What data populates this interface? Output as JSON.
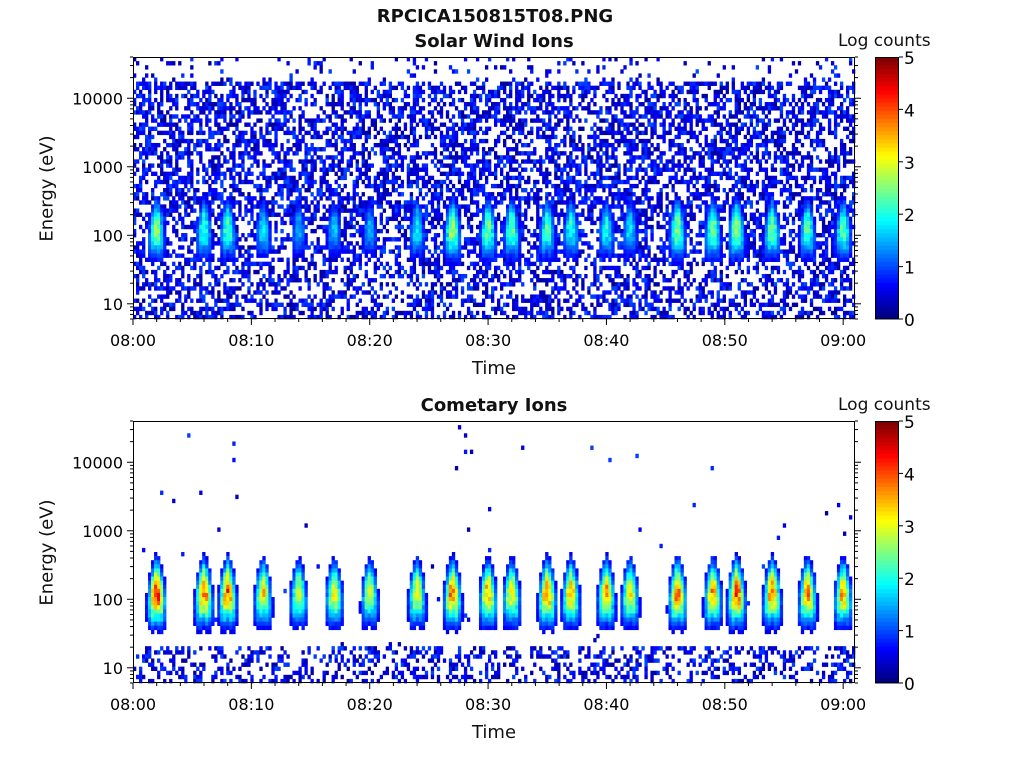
{
  "figure_title": "RPCICA150815T08.PNG",
  "panels": [
    {
      "title": "Solar Wind Ions",
      "ylabel": "Energy (eV)",
      "xlabel": "Time",
      "colorbar_label": "Log counts"
    },
    {
      "title": "Cometary Ions",
      "ylabel": "Energy (eV)",
      "xlabel": "Time",
      "colorbar_label": "Log counts"
    }
  ],
  "colors": {
    "colormap": "jet",
    "background": "#ffffff"
  },
  "chart_data": [
    {
      "type": "heatmap",
      "title": "Solar Wind Ions",
      "xlabel": "Time",
      "ylabel": "Energy (eV)",
      "x_ticks": [
        "08:00",
        "08:10",
        "08:20",
        "08:30",
        "08:40",
        "08:50",
        "09:00"
      ],
      "x_range": [
        "08:00",
        "09:01"
      ],
      "y_scale": "log",
      "y_ticks": [
        10,
        100,
        1000,
        10000
      ],
      "y_range": [
        6,
        40000
      ],
      "colorbar": {
        "label": "Log counts",
        "range": [
          0,
          5
        ],
        "ticks": [
          0,
          1,
          2,
          3,
          4,
          5
        ],
        "colormap": "jet"
      },
      "description_bands_center_eV": 60,
      "peak_times_min": [
        2,
        6,
        8,
        11,
        14,
        17,
        20,
        24,
        27,
        30,
        32,
        35,
        37,
        40,
        42,
        46,
        49,
        51,
        54,
        57,
        60
      ],
      "peak_log_counts": [
        2.6,
        2.2,
        2.3,
        1.8,
        1.5,
        1.6,
        1.5,
        1.9,
        2.8,
        2.5,
        2.4,
        2.3,
        2.1,
        2.0,
        1.8,
        2.6,
        2.5,
        2.7,
        2.5,
        2.3,
        2.4
      ]
    },
    {
      "type": "heatmap",
      "title": "Cometary Ions",
      "xlabel": "Time",
      "ylabel": "Energy (eV)",
      "x_ticks": [
        "08:00",
        "08:10",
        "08:20",
        "08:30",
        "08:40",
        "08:50",
        "09:00"
      ],
      "x_range": [
        "08:00",
        "09:01"
      ],
      "y_scale": "log",
      "y_ticks": [
        10,
        100,
        1000,
        10000
      ],
      "y_range": [
        6,
        40000
      ],
      "colorbar": {
        "label": "Log counts",
        "range": [
          0,
          5
        ],
        "ticks": [
          0,
          1,
          2,
          3,
          4,
          5
        ],
        "colormap": "jet"
      },
      "peak_times_min": [
        2,
        6,
        8,
        11,
        14,
        17,
        20,
        24,
        27,
        30,
        32,
        35,
        37,
        40,
        42,
        46,
        49,
        51,
        54,
        57,
        60
      ],
      "peak_log_counts": [
        4.3,
        4.0,
        4.0,
        3.3,
        3.0,
        3.2,
        3.0,
        3.2,
        3.9,
        3.6,
        3.3,
        3.9,
        3.6,
        3.6,
        3.3,
        3.9,
        3.6,
        4.1,
        3.9,
        3.8,
        3.6
      ]
    }
  ]
}
